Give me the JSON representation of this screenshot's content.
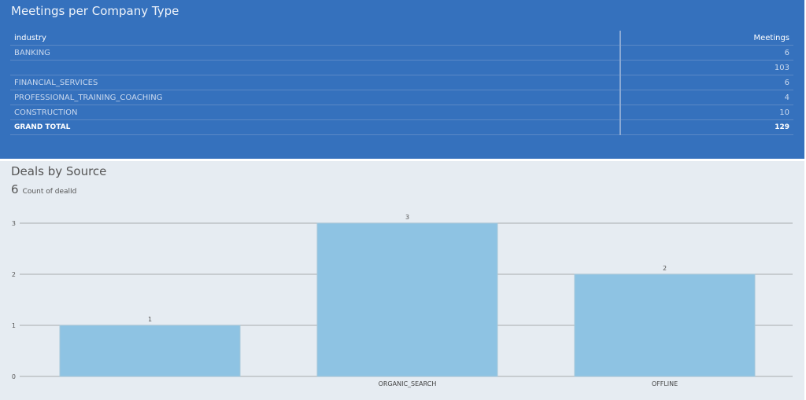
{
  "meetings": {
    "title": "Meetings per Company Type",
    "columns": [
      "industry",
      "Meetings"
    ],
    "rows": [
      {
        "industry": "BANKING",
        "meetings": "6"
      },
      {
        "industry": "",
        "meetings": "103"
      },
      {
        "industry": "FINANCIAL_SERVICES",
        "meetings": "6"
      },
      {
        "industry": "PROFESSIONAL_TRAINING_COACHING",
        "meetings": "4"
      },
      {
        "industry": "CONSTRUCTION",
        "meetings": "10"
      }
    ],
    "total": {
      "label": "GRAND TOTAL",
      "value": "129"
    }
  },
  "deals": {
    "title": "Deals by Source",
    "kpi_value": "6",
    "kpi_label": "Count of dealId"
  },
  "chart_data": {
    "type": "bar",
    "title": "Deals by Source",
    "categories": [
      "",
      "ORGANIC_SEARCH",
      "OFFLINE"
    ],
    "values": [
      1,
      3,
      2
    ],
    "ylim": [
      0,
      3
    ],
    "yticks": [
      0,
      1,
      2,
      3
    ],
    "grid": true,
    "bar_color": "#8ec3e3"
  }
}
